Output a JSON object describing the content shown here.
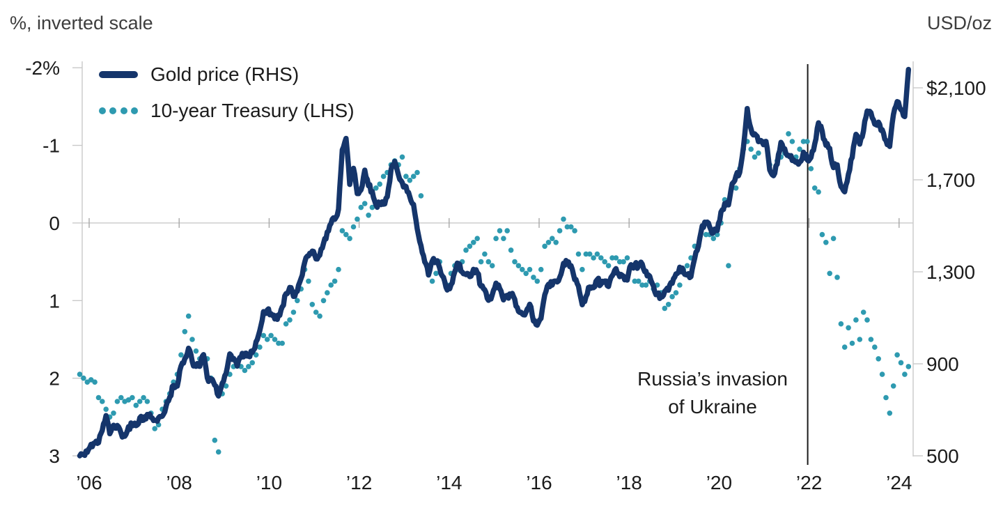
{
  "titles": {
    "left": "%, inverted scale",
    "right": "USD/oz"
  },
  "legend": [
    {
      "label": "Gold price (RHS)",
      "swatch": "solid-line",
      "color": "#15356b"
    },
    {
      "label": "10-year Treasury (LHS)",
      "swatch": "dots",
      "color": "#2e9ab0"
    }
  ],
  "annotation": {
    "line1": "Russia’s invasion",
    "line2": "of Ukraine",
    "event_year": 2022.0
  },
  "colors": {
    "gold_line": "#15356b",
    "treasury_dots": "#2e9ab0",
    "axis": "#c9c9c9",
    "year_tick": "#a8a8a8",
    "event_line": "#1a1a1a",
    "text": "#1b1b1b"
  },
  "chart_data": {
    "type": "line",
    "title": "",
    "x_axis": {
      "tick_labels": [
        "’06",
        "’08",
        "’10",
        "’12",
        "’14",
        "’16",
        "’18",
        "’20",
        "’22",
        "’24"
      ],
      "tick_years": [
        2006,
        2008,
        2010,
        2012,
        2014,
        2016,
        2018,
        2020,
        2022,
        2024
      ],
      "range_years": [
        2005.75,
        2024.3
      ]
    },
    "left_axis": {
      "label": "%, inverted scale",
      "tick_labels": [
        "-2%",
        "-1",
        "0",
        "1",
        "2",
        "3"
      ],
      "tick_values": [
        -2,
        -1,
        0,
        1,
        2,
        3
      ],
      "inverted": true,
      "range": [
        -2,
        3
      ],
      "zero_gridline": true
    },
    "right_axis": {
      "label": "USD/oz",
      "tick_labels": [
        "$2,100",
        "1,700",
        "1,300",
        "900",
        "500"
      ],
      "tick_values": [
        2100,
        1700,
        1300,
        900,
        500
      ],
      "range": [
        500,
        2200
      ]
    },
    "legend_position": "top-left-inside",
    "grid": "zero-line-only",
    "series": [
      {
        "name": "Gold price (RHS)",
        "axis": "right",
        "style": "solid",
        "unit": "USD/oz",
        "start_year": 2005,
        "start_month": 10,
        "freq": "monthly",
        "values": [
          500,
          505,
          515,
          550,
          555,
          557,
          610,
          675,
          596,
          633,
          632,
          599,
          585,
          627,
          630,
          631,
          665,
          655,
          680,
          667,
          655,
          665,
          672,
          715,
          755,
          806,
          803,
          890,
          922,
          968,
          910,
          889,
          889,
          940,
          839,
          829,
          807,
          760,
          816,
          858,
          943,
          924,
          890,
          928,
          945,
          934,
          949,
          996,
          1043,
          1127,
          1134,
          1118,
          1095,
          1113,
          1148,
          1205,
          1232,
          1193,
          1215,
          1271,
          1342,
          1369,
          1390,
          1356,
          1372,
          1424,
          1473,
          1510,
          1528,
          1572,
          1830,
          1880,
          1680,
          1750,
          1640,
          1656,
          1742,
          1674,
          1650,
          1591,
          1598,
          1594,
          1626,
          1744,
          1780,
          1721,
          1688,
          1671,
          1627,
          1593,
          1487,
          1414,
          1343,
          1286,
          1347,
          1348,
          1316,
          1276,
          1221,
          1244,
          1300,
          1336,
          1299,
          1288,
          1279,
          1311,
          1296,
          1238,
          1222,
          1176,
          1200,
          1251,
          1227,
          1178,
          1198,
          1199,
          1181,
          1128,
          1117,
          1125,
          1159,
          1086,
          1068,
          1097,
          1200,
          1246,
          1242,
          1260,
          1276,
          1337,
          1340,
          1327,
          1266,
          1238,
          1157,
          1192,
          1234,
          1231,
          1266,
          1246,
          1260,
          1236,
          1283,
          1314,
          1279,
          1281,
          1264,
          1331,
          1330,
          1325,
          1334,
          1303,
          1281,
          1238,
          1201,
          1190,
          1215,
          1220,
          1250,
          1291,
          1320,
          1300,
          1286,
          1279,
          1359,
          1413,
          1500,
          1511,
          1495,
          1471,
          1479,
          1560,
          1597,
          1591,
          1683,
          1716,
          1732,
          1843,
          2010,
          1922,
          1900,
          1866,
          1864,
          1867,
          1743,
          1718,
          1768,
          1863,
          1835,
          1807,
          1784,
          1776,
          1777,
          1820,
          1787,
          1797,
          1856,
          1948,
          1912,
          1850,
          1837,
          1753,
          1765,
          1671,
          1648,
          1725,
          1797,
          1898,
          1855,
          1912,
          1999,
          1992,
          1942,
          1951,
          1918,
          1871,
          1845,
          1984,
          2040,
          2005,
          1975,
          2180
        ]
      },
      {
        "name": "10-year Treasury (LHS)",
        "axis": "left",
        "style": "dotted",
        "unit": "%",
        "start_year": 2005,
        "start_month": 10,
        "freq": "monthly",
        "values": [
          1.95,
          2.0,
          2.05,
          2.02,
          2.05,
          2.25,
          2.3,
          2.4,
          2.5,
          2.45,
          2.3,
          2.25,
          2.3,
          2.28,
          2.25,
          2.35,
          2.3,
          2.25,
          2.3,
          2.45,
          2.65,
          2.6,
          2.4,
          2.3,
          2.2,
          2.05,
          1.95,
          1.7,
          1.4,
          1.2,
          1.5,
          1.65,
          1.75,
          1.7,
          1.75,
          2.0,
          2.8,
          2.95,
          2.2,
          2.1,
          1.95,
          1.85,
          1.8,
          1.85,
          1.9,
          1.85,
          1.8,
          1.7,
          1.6,
          1.45,
          1.5,
          1.45,
          1.5,
          1.55,
          1.55,
          1.3,
          1.25,
          1.15,
          1.0,
          0.85,
          0.6,
          0.75,
          1.05,
          1.15,
          1.2,
          1.0,
          0.9,
          0.8,
          0.75,
          0.6,
          0.1,
          0.15,
          0.2,
          0.05,
          -0.05,
          -0.2,
          -0.25,
          -0.1,
          -0.2,
          -0.45,
          -0.5,
          -0.6,
          -0.65,
          -0.75,
          -0.8,
          -0.75,
          -0.85,
          -0.6,
          -0.55,
          -0.6,
          -0.65,
          -0.35,
          0.5,
          0.65,
          0.75,
          0.65,
          0.5,
          0.7,
          0.8,
          0.65,
          0.55,
          0.6,
          0.5,
          0.35,
          0.3,
          0.25,
          0.2,
          0.5,
          0.4,
          0.5,
          0.55,
          0.2,
          0.1,
          0.2,
          0.1,
          0.35,
          0.5,
          0.55,
          0.6,
          0.65,
          0.6,
          0.7,
          0.75,
          0.6,
          0.3,
          0.25,
          0.2,
          0.25,
          0.1,
          -0.05,
          0.05,
          0.05,
          0.1,
          0.4,
          0.6,
          0.4,
          0.4,
          0.45,
          0.4,
          0.45,
          0.5,
          0.55,
          0.45,
          0.45,
          0.5,
          0.5,
          0.45,
          0.55,
          0.75,
          0.75,
          0.8,
          0.8,
          0.75,
          0.85,
          0.8,
          0.9,
          1.1,
          1.05,
          0.95,
          0.9,
          0.8,
          0.6,
          0.55,
          0.45,
          0.3,
          0.3,
          0.05,
          0.15,
          0.15,
          0.2,
          0.15,
          0.0,
          -0.3,
          0.55,
          -0.45,
          -0.45,
          -0.7,
          -0.95,
          -1.05,
          -0.95,
          -0.85,
          -0.9,
          -1.05,
          -1.05,
          -0.75,
          -0.65,
          -0.8,
          -0.85,
          -0.9,
          -1.15,
          -1.05,
          -0.85,
          -0.95,
          -1.05,
          -1.05,
          -0.7,
          -0.45,
          -0.4,
          0.15,
          0.25,
          0.65,
          0.2,
          0.7,
          1.3,
          1.6,
          1.35,
          1.55,
          1.25,
          1.5,
          1.15,
          1.25,
          1.5,
          1.6,
          1.75,
          1.95,
          2.25,
          2.45,
          2.1,
          1.7,
          1.8,
          1.95,
          1.85
        ]
      }
    ]
  }
}
